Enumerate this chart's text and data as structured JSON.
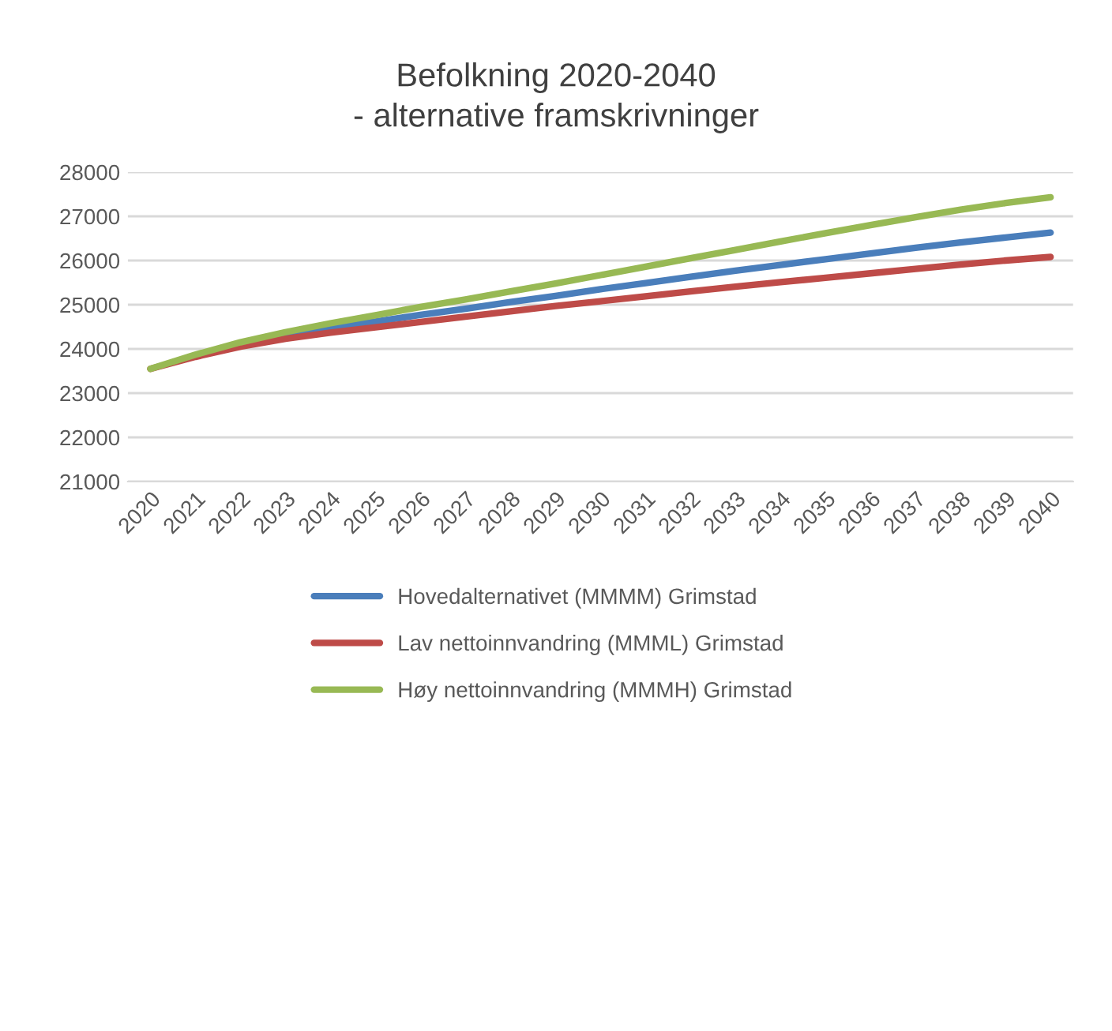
{
  "chart_data": {
    "type": "line",
    "title": "Befolkning 2020-2040\n- alternative framskrivninger",
    "categories": [
      "2020",
      "2021",
      "2022",
      "2023",
      "2024",
      "2025",
      "2026",
      "2027",
      "2028",
      "2029",
      "2030",
      "2031",
      "2032",
      "2033",
      "2034",
      "2035",
      "2036",
      "2037",
      "2038",
      "2039",
      "2040"
    ],
    "series": [
      {
        "name": "Hovedalternativet (MMMM) Grimstad",
        "color": "#4a7ebb",
        "values": [
          null,
          null,
          24100,
          24300,
          24470,
          24620,
          24770,
          24910,
          25060,
          25200,
          25350,
          25490,
          25630,
          25770,
          25900,
          26030,
          26160,
          26290,
          26410,
          26520,
          26630
        ]
      },
      {
        "name": "Lav nettoinnvandring (MMML) Grimstad",
        "color": "#be4b48",
        "values": [
          23550,
          23820,
          24050,
          24230,
          24370,
          24490,
          24610,
          24730,
          24850,
          24970,
          25080,
          25190,
          25300,
          25410,
          25510,
          25610,
          25710,
          25810,
          25910,
          26000,
          26080
        ]
      },
      {
        "name": "Høy nettoinnvandring (MMMH) Grimstad",
        "color": "#98b954",
        "values": [
          23550,
          23870,
          24150,
          24380,
          24580,
          24760,
          24950,
          25120,
          25300,
          25480,
          25670,
          25860,
          26050,
          26240,
          26430,
          26620,
          26800,
          26980,
          27150,
          27300,
          27430
        ]
      }
    ],
    "ylim": [
      21000,
      28000
    ],
    "yticks": [
      21000,
      22000,
      23000,
      24000,
      25000,
      26000,
      27000,
      28000
    ],
    "grid": "y",
    "legend": "bottom",
    "marker": "none",
    "line_style": "solid"
  }
}
